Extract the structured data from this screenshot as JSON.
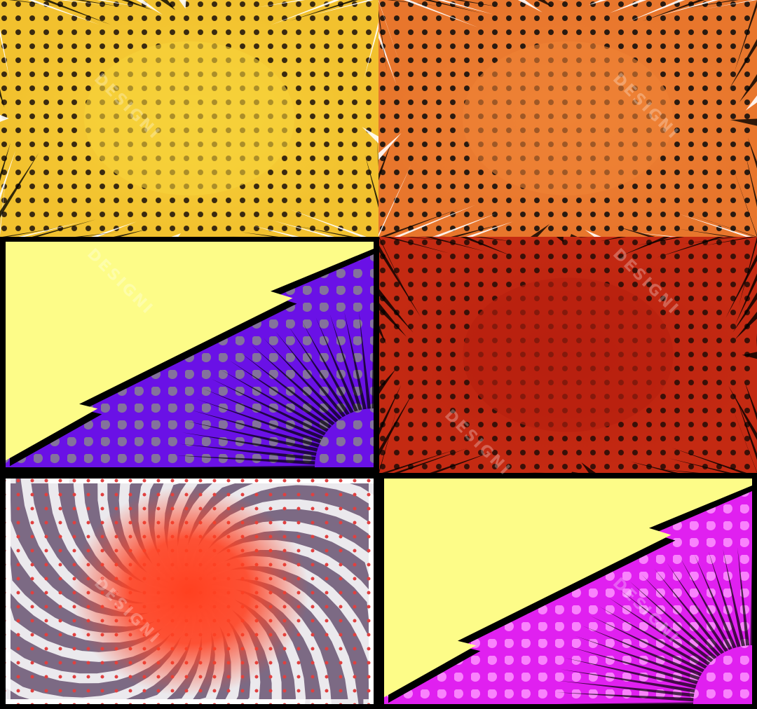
{
  "watermark": {
    "text": "DESIGNI"
  },
  "panels": [
    {
      "id": "yellow-burst",
      "style": "burst",
      "center_color": "#f7d23a",
      "edge_color": "#f2c12e",
      "dot_color": "#3a2a10",
      "ray_color": "#ffffff",
      "ray_dark": "#000000"
    },
    {
      "id": "orange-burst",
      "style": "burst",
      "center_color": "#ee8235",
      "edge_color": "#e8762c",
      "dot_color": "#2a1a10",
      "ray_color": "#ffffff",
      "ray_dark": "#000000"
    },
    {
      "id": "yellow-purple-split",
      "style": "split",
      "top_color": "#fdfc88",
      "bottom_color": "#6a11e6",
      "dot_color": "#8a8a8a",
      "ray_dark": "#000000"
    },
    {
      "id": "red-burst",
      "style": "burst",
      "center_color": "#b8200f",
      "edge_color": "#c42a12",
      "dot_color": "#3a1008",
      "ray_dark": "#000000"
    },
    {
      "id": "red-swirl",
      "style": "swirl",
      "center_color": "#ff4020",
      "edge_color": "#7c6a84",
      "dot_color": "#e04040",
      "ray_color": "#ffffff"
    },
    {
      "id": "yellow-magenta-split",
      "style": "split",
      "top_color": "#fdfc88",
      "bottom_color": "#e020f0",
      "dot_color": "#ff9cff",
      "ray_dark": "#000000"
    }
  ]
}
